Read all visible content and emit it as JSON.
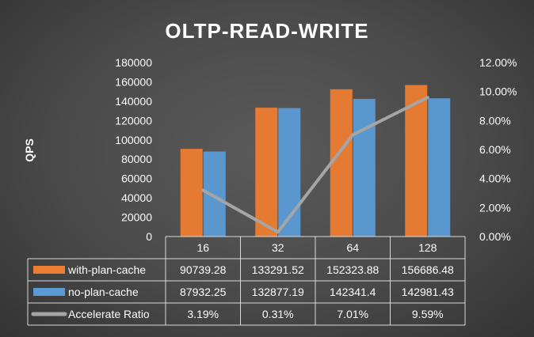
{
  "chart_data": {
    "type": "bar",
    "title": "OLTP-READ-WRITE",
    "ylabel": "QPS",
    "categories": [
      "16",
      "32",
      "64",
      "128"
    ],
    "ylim": [
      0,
      180000
    ],
    "y_ticks": [
      "0",
      "20000",
      "40000",
      "60000",
      "80000",
      "100000",
      "120000",
      "140000",
      "160000",
      "180000"
    ],
    "y2lim": [
      0,
      12
    ],
    "y2_ticks": [
      "0.00%",
      "2.00%",
      "4.00%",
      "6.00%",
      "8.00%",
      "10.00%",
      "12.00%"
    ],
    "grid": false,
    "legend": "data-table",
    "series": [
      {
        "name": "with-plan-cache",
        "type": "bar",
        "color": "#ED7D31",
        "values": [
          90739.28,
          133291.52,
          152323.88,
          156686.48
        ],
        "labels": [
          "90739.28",
          "133291.52",
          "152323.88",
          "156686.48"
        ]
      },
      {
        "name": "no-plan-cache",
        "type": "bar",
        "color": "#5B9BD5",
        "values": [
          87932.25,
          132877.19,
          142341.4,
          142981.43
        ],
        "labels": [
          "87932.25",
          "132877.19",
          "142341.4",
          "142981.43"
        ]
      },
      {
        "name": "Accelerate Ratio",
        "type": "line",
        "axis": "secondary",
        "color": "#A5A5A5",
        "values": [
          3.19,
          0.31,
          7.01,
          9.59
        ],
        "labels": [
          "3.19%",
          "0.31%",
          "7.01%",
          "9.59%"
        ]
      }
    ]
  }
}
